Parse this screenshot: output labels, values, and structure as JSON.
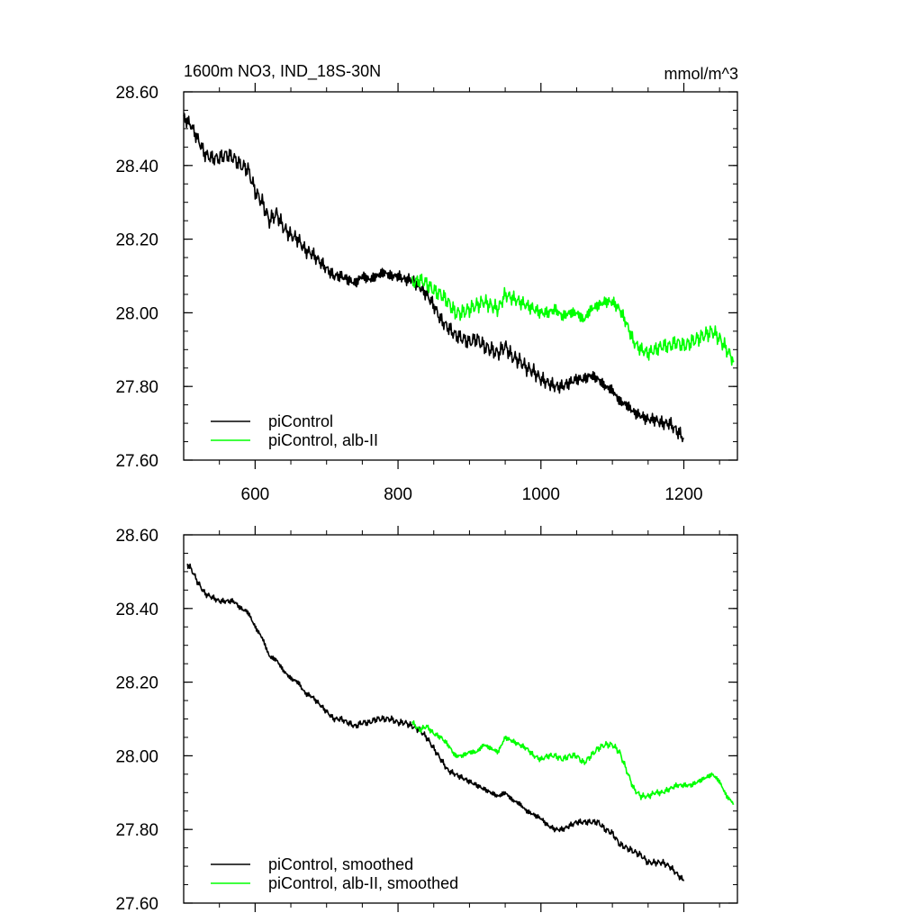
{
  "chart_data": [
    {
      "type": "line",
      "title": "1600m NO3, IND_18S-30N",
      "units": "mmol/m^3",
      "xlim": [
        500,
        1275
      ],
      "ylim": [
        27.6,
        28.6
      ],
      "x_ticks": [
        600,
        800,
        1000,
        1200
      ],
      "x_tick_labels": [
        "600",
        "800",
        "1000",
        "1200"
      ],
      "y_ticks": [
        27.6,
        27.8,
        28.0,
        28.2,
        28.4,
        28.6
      ],
      "y_tick_labels": [
        "27.60",
        "27.80",
        "28.00",
        "28.20",
        "28.40",
        "28.60"
      ],
      "legend_position": "bottom-left",
      "series": [
        {
          "name": "piControl",
          "color": "#000000",
          "x": [
            500,
            510,
            520,
            530,
            540,
            550,
            560,
            570,
            580,
            590,
            600,
            610,
            620,
            630,
            640,
            650,
            660,
            670,
            680,
            690,
            700,
            710,
            720,
            730,
            740,
            750,
            760,
            770,
            780,
            790,
            800,
            810,
            820,
            830,
            840,
            850,
            860,
            870,
            880,
            890,
            900,
            910,
            920,
            930,
            940,
            950,
            960,
            970,
            980,
            990,
            1000,
            1010,
            1020,
            1030,
            1040,
            1050,
            1060,
            1070,
            1080,
            1090,
            1100,
            1110,
            1120,
            1130,
            1140,
            1150,
            1160,
            1170,
            1180,
            1190,
            1200
          ],
          "y": [
            28.53,
            28.51,
            28.47,
            28.43,
            28.42,
            28.42,
            28.43,
            28.42,
            28.4,
            28.39,
            28.33,
            28.3,
            28.25,
            28.27,
            28.23,
            28.21,
            28.2,
            28.17,
            28.16,
            28.14,
            28.12,
            28.1,
            28.1,
            28.09,
            28.08,
            28.1,
            28.09,
            28.1,
            28.11,
            28.1,
            28.1,
            28.09,
            28.09,
            28.07,
            28.05,
            28.02,
            27.98,
            27.96,
            27.94,
            27.93,
            27.92,
            27.93,
            27.91,
            27.9,
            27.89,
            27.91,
            27.88,
            27.87,
            27.85,
            27.84,
            27.82,
            27.81,
            27.8,
            27.8,
            27.81,
            27.82,
            27.82,
            27.83,
            27.82,
            27.8,
            27.79,
            27.76,
            27.75,
            27.73,
            27.72,
            27.71,
            27.71,
            27.7,
            27.7,
            27.68,
            27.66
          ]
        },
        {
          "name": "piControl, alb-II",
          "color": "#00ff00",
          "x": [
            820,
            830,
            840,
            850,
            860,
            870,
            880,
            890,
            900,
            910,
            920,
            930,
            940,
            950,
            960,
            970,
            980,
            990,
            1000,
            1010,
            1020,
            1030,
            1040,
            1050,
            1060,
            1070,
            1080,
            1090,
            1100,
            1110,
            1120,
            1130,
            1140,
            1150,
            1160,
            1170,
            1180,
            1190,
            1200,
            1210,
            1220,
            1230,
            1240,
            1250,
            1260,
            1270
          ],
          "y": [
            28.08,
            28.09,
            28.08,
            28.06,
            28.05,
            28.03,
            28.0,
            28.0,
            28.01,
            28.02,
            28.03,
            28.02,
            28.01,
            28.05,
            28.04,
            28.03,
            28.02,
            28.01,
            28.0,
            28.0,
            28.01,
            27.99,
            28.0,
            28.0,
            27.98,
            28.01,
            28.02,
            28.03,
            28.03,
            28.01,
            27.97,
            27.92,
            27.9,
            27.89,
            27.9,
            27.91,
            27.91,
            27.92,
            27.91,
            27.92,
            27.93,
            27.94,
            27.95,
            27.93,
            27.9,
            27.87
          ]
        }
      ]
    },
    {
      "type": "line",
      "title": "",
      "xlim": [
        500,
        1275
      ],
      "ylim": [
        27.6,
        28.6
      ],
      "x_ticks": [
        600,
        800,
        1000,
        1200
      ],
      "y_ticks": [
        27.6,
        27.8,
        28.0,
        28.2,
        28.4,
        28.6
      ],
      "y_tick_labels": [
        "27.60",
        "27.80",
        "28.00",
        "28.20",
        "28.40",
        "28.60"
      ],
      "legend_position": "bottom-left",
      "series": [
        {
          "name": "piControl, smoothed",
          "color": "#000000",
          "x": [
            505,
            510,
            520,
            530,
            540,
            550,
            560,
            570,
            580,
            590,
            600,
            610,
            620,
            630,
            640,
            650,
            660,
            670,
            680,
            690,
            700,
            710,
            720,
            730,
            740,
            750,
            760,
            770,
            780,
            790,
            800,
            810,
            820,
            830,
            840,
            850,
            860,
            870,
            880,
            890,
            900,
            910,
            920,
            930,
            940,
            950,
            960,
            970,
            980,
            990,
            1000,
            1010,
            1020,
            1030,
            1040,
            1050,
            1060,
            1070,
            1080,
            1090,
            1100,
            1110,
            1120,
            1130,
            1140,
            1150,
            1160,
            1170,
            1180,
            1190,
            1200
          ],
          "y": [
            28.52,
            28.51,
            28.47,
            28.44,
            28.43,
            28.42,
            28.42,
            28.42,
            28.4,
            28.39,
            28.35,
            28.32,
            28.27,
            28.26,
            28.23,
            28.21,
            28.2,
            28.17,
            28.16,
            28.14,
            28.12,
            28.1,
            28.1,
            28.09,
            28.08,
            28.09,
            28.09,
            28.1,
            28.1,
            28.1,
            28.09,
            28.09,
            28.08,
            28.07,
            28.05,
            28.02,
            27.99,
            27.96,
            27.95,
            27.94,
            27.93,
            27.92,
            27.91,
            27.9,
            27.89,
            27.9,
            27.88,
            27.87,
            27.85,
            27.84,
            27.83,
            27.81,
            27.8,
            27.8,
            27.81,
            27.82,
            27.82,
            27.82,
            27.82,
            27.8,
            27.79,
            27.76,
            27.75,
            27.74,
            27.73,
            27.71,
            27.71,
            27.71,
            27.7,
            27.68,
            27.66
          ]
        },
        {
          "name": "piControl, alb-II, smoothed",
          "color": "#00ff00",
          "x": [
            820,
            830,
            840,
            850,
            860,
            870,
            880,
            890,
            900,
            910,
            920,
            930,
            940,
            950,
            960,
            970,
            980,
            990,
            1000,
            1010,
            1020,
            1030,
            1040,
            1050,
            1060,
            1070,
            1080,
            1090,
            1100,
            1110,
            1120,
            1130,
            1140,
            1150,
            1160,
            1170,
            1180,
            1190,
            1200,
            1210,
            1220,
            1230,
            1240,
            1250,
            1260,
            1270
          ],
          "y": [
            28.09,
            28.07,
            28.08,
            28.06,
            28.05,
            28.03,
            28.0,
            28.0,
            28.01,
            28.01,
            28.03,
            28.02,
            28.01,
            28.05,
            28.04,
            28.03,
            28.02,
            28.0,
            27.99,
            28.0,
            28.0,
            27.99,
            28.0,
            28.0,
            27.98,
            28.0,
            28.02,
            28.03,
            28.03,
            28.01,
            27.96,
            27.91,
            27.89,
            27.89,
            27.9,
            27.9,
            27.91,
            27.92,
            27.92,
            27.92,
            27.93,
            27.94,
            27.95,
            27.93,
            27.89,
            27.87
          ]
        }
      ]
    }
  ]
}
